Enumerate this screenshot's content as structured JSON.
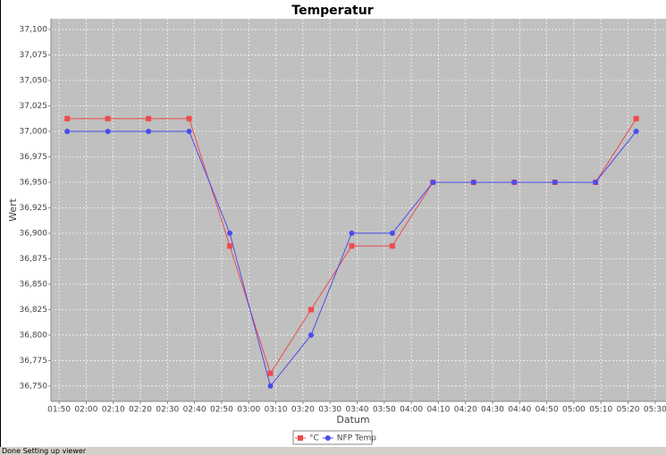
{
  "chart_data": {
    "type": "line",
    "title": "Temperatur",
    "x_label": "Datum",
    "y_label": "Wert",
    "x": [
      "01:53",
      "02:08",
      "02:23",
      "02:38",
      "02:53",
      "03:08",
      "03:23",
      "03:38",
      "03:53",
      "04:08",
      "04:23",
      "04:38",
      "04:53",
      "05:08",
      "05:23"
    ],
    "series": [
      {
        "name": "°C",
        "color": "#ef4b4b",
        "marker": "square",
        "values": [
          37.0125,
          37.0125,
          37.0125,
          37.0125,
          36.8875,
          36.7625,
          36.825,
          36.8875,
          36.8875,
          36.95,
          36.95,
          36.95,
          36.95,
          36.95,
          37.0125
        ]
      },
      {
        "name": "NFP Temp",
        "color": "#4b4bef",
        "marker": "circle",
        "values": [
          37.0,
          37.0,
          37.0,
          37.0,
          36.9,
          36.75,
          36.8,
          36.9,
          36.9,
          36.95,
          36.95,
          36.95,
          36.95,
          36.95,
          37.0
        ]
      }
    ],
    "xlim": [
      "01:47",
      "05:34"
    ],
    "xticks": [
      "01:50",
      "02:00",
      "02:10",
      "02:20",
      "02:30",
      "02:40",
      "02:50",
      "03:00",
      "03:10",
      "03:20",
      "03:30",
      "03:40",
      "03:50",
      "04:00",
      "04:10",
      "04:20",
      "04:30",
      "04:40",
      "04:50",
      "05:00",
      "05:10",
      "05:20",
      "05:30"
    ],
    "ylim": [
      36.735,
      37.1105
    ],
    "yticks": [
      {
        "value": 36.75,
        "label": "36,750"
      },
      {
        "value": 36.775,
        "label": "36,775"
      },
      {
        "value": 36.8,
        "label": "36,800"
      },
      {
        "value": 36.825,
        "label": "36,825"
      },
      {
        "value": 36.85,
        "label": "36,850"
      },
      {
        "value": 36.875,
        "label": "36,875"
      },
      {
        "value": 36.9,
        "label": "36,900"
      },
      {
        "value": 36.925,
        "label": "36,925"
      },
      {
        "value": 36.95,
        "label": "36,950"
      },
      {
        "value": 36.975,
        "label": "36,975"
      },
      {
        "value": 37.0,
        "label": "37,000"
      },
      {
        "value": 37.025,
        "label": "37,025"
      },
      {
        "value": 37.05,
        "label": "37,050"
      },
      {
        "value": 37.075,
        "label": "37,075"
      },
      {
        "value": 37.1,
        "label": "37,100"
      }
    ],
    "grid": true,
    "legend": "bottom"
  },
  "status": "Done Setting up viewer"
}
